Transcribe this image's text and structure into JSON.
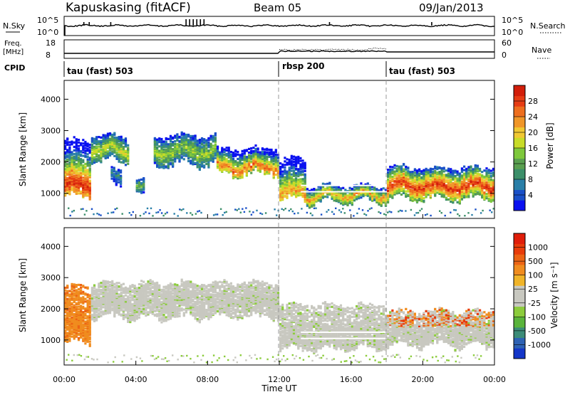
{
  "header": {
    "station": "Kapuskasing (fitACF)",
    "beam": "Beam 05",
    "date": "09/Jan/2013"
  },
  "summary": {
    "nsky_label": "N.Sky",
    "nsky_ticks": [
      "10^5",
      "10^0"
    ],
    "nsearch_label": "N.Search",
    "nsearch_ticks": [
      "10^5",
      "10^0"
    ],
    "freq_label_1": "Freq.",
    "freq_label_2": "[MHz]",
    "freq_ticks": [
      "18",
      "8"
    ],
    "nave_label": "Nave",
    "nave_ticks": [
      "60",
      "0"
    ],
    "cpid_label": "CPID",
    "modes": [
      {
        "label": "tau (fast) 503",
        "start_hour": 0
      },
      {
        "label": "rbsp 200",
        "start_hour": 12
      },
      {
        "label": "tau (fast) 503",
        "start_hour": 18
      }
    ]
  },
  "chart_data": [
    {
      "type": "heatmap",
      "name": "power",
      "xlabel": "",
      "ylabel": "Slant Range [km]",
      "xlim": [
        0,
        24
      ],
      "ylim": [
        200,
        4600
      ],
      "yticks": [
        1000,
        2000,
        3000,
        4000
      ],
      "colorbar": {
        "label": "Power [dB]",
        "ticks": [
          "28",
          "24",
          "20",
          "16",
          "12",
          "8",
          "4"
        ],
        "colors": [
          "#0a10f0",
          "#1a50c8",
          "#2a7fa8",
          "#3c8f6a",
          "#5aa050",
          "#7ec83c",
          "#c8dc28",
          "#f0c832",
          "#f09628",
          "#ee6e1e",
          "#e63c14",
          "#d21e0a"
        ]
      },
      "bands": [
        {
          "start": 0.0,
          "end": 1.5,
          "lower": 900,
          "upper": 2700,
          "core": 1250,
          "peak_db": 26
        },
        {
          "start": 1.5,
          "end": 3.6,
          "lower": 2000,
          "upper": 2800,
          "core": 2350,
          "peak_db": 16
        },
        {
          "start": 2.6,
          "end": 3.2,
          "lower": 1200,
          "upper": 1700,
          "core": 1450,
          "peak_db": 8
        },
        {
          "start": 4.0,
          "end": 4.5,
          "lower": 900,
          "upper": 1400,
          "core": 1150,
          "peak_db": 12
        },
        {
          "start": 5.0,
          "end": 8.5,
          "lower": 1900,
          "upper": 2800,
          "core": 2300,
          "peak_db": 14
        },
        {
          "start": 8.5,
          "end": 12.0,
          "lower": 1600,
          "upper": 2400,
          "core": 1800,
          "peak_db": 22
        },
        {
          "start": 12.0,
          "end": 13.5,
          "lower": 800,
          "upper": 2100,
          "core": 1000,
          "peak_db": 20
        },
        {
          "start": 13.5,
          "end": 18.0,
          "lower": 700,
          "upper": 1200,
          "core": 900,
          "peak_db": 20
        },
        {
          "start": 18.0,
          "end": 24.0,
          "lower": 800,
          "upper": 1800,
          "core": 1200,
          "peak_db": 26
        }
      ]
    },
    {
      "type": "heatmap",
      "name": "velocity",
      "xlabel": "Time UT",
      "ylabel": "Slant Range [km]",
      "xlim": [
        0,
        24
      ],
      "ylim": [
        200,
        4600
      ],
      "yticks": [
        1000,
        2000,
        3000,
        4000
      ],
      "xticks": [
        "00:00",
        "04:00",
        "08:00",
        "12:00",
        "16:00",
        "20:00",
        "00:00"
      ],
      "colorbar": {
        "label": "Velocity [m s⁻¹]",
        "ticks": [
          "1000",
          "500",
          "100",
          "25",
          "-25",
          "-100",
          "-500",
          "-1000"
        ],
        "colors": [
          "#1436c8",
          "#2e62b4",
          "#3c8c78",
          "#5ab43c",
          "#8ccc3c",
          "#c8c8c0",
          "#c8c8c0",
          "#f0b428",
          "#f08c1e",
          "#ec6414",
          "#e83c0a",
          "#e01e0a"
        ]
      },
      "bands": [
        {
          "start": 0.0,
          "end": 1.5,
          "lower": 900,
          "upper": 2700,
          "core": 1250,
          "vel": "away"
        },
        {
          "start": 1.5,
          "end": 12.0,
          "lower": 1700,
          "upper": 2800,
          "core": 2200,
          "vel": "ground"
        },
        {
          "start": 12.0,
          "end": 18.0,
          "lower": 700,
          "upper": 2100,
          "core": 1000,
          "vel": "ground"
        },
        {
          "start": 18.0,
          "end": 24.0,
          "lower": 800,
          "upper": 1900,
          "core": 1200,
          "vel": "mixed"
        }
      ]
    }
  ]
}
